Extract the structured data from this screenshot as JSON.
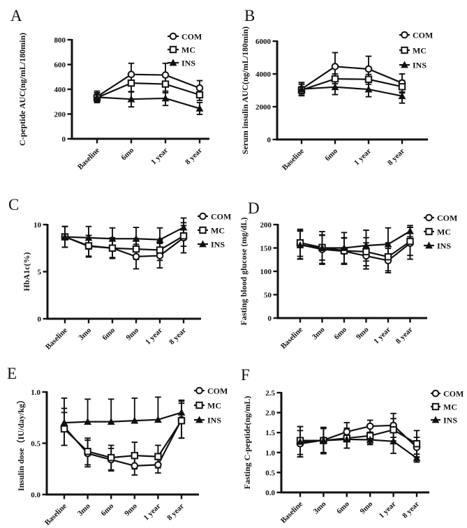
{
  "figure": {
    "background": "#ffffff",
    "ink": "#111111",
    "panel_letters": [
      "A",
      "B",
      "C",
      "D",
      "E",
      "F"
    ]
  },
  "legend": {
    "position": "top-right",
    "entries": [
      {
        "label": "COM",
        "marker": "open-circle"
      },
      {
        "label": "MC",
        "marker": "open-square"
      },
      {
        "label": "INS",
        "marker": "filled-triangle"
      }
    ]
  },
  "chart_data": [
    {
      "panel": "A",
      "type": "line",
      "title": "",
      "xlabel": "",
      "ylabel": "C-peptide AUC(ng/mL/180min)",
      "categories": [
        "Baseline",
        "6mo",
        "1 year",
        "8 year"
      ],
      "ylim": [
        0,
        800
      ],
      "yticks": [
        0,
        200,
        400,
        600,
        800
      ],
      "ytick_labels": [
        "0",
        "200",
        "400",
        "600",
        "800"
      ],
      "grid": false,
      "legend": [
        "COM",
        "MC",
        "INS"
      ],
      "series": [
        {
          "name": "COM",
          "marker": "circle",
          "values": [
            340,
            520,
            515,
            410
          ],
          "errors": [
            45,
            90,
            95,
            60
          ]
        },
        {
          "name": "MC",
          "marker": "square",
          "values": [
            332,
            450,
            442,
            355
          ],
          "errors": [
            40,
            72,
            70,
            45
          ]
        },
        {
          "name": "INS",
          "marker": "triangle",
          "values": [
            336,
            320,
            327,
            245
          ],
          "errors": [
            35,
            62,
            58,
            48
          ]
        }
      ]
    },
    {
      "panel": "B",
      "type": "line",
      "title": "",
      "xlabel": "",
      "ylabel": "Serum insulin AUC(ng/mL/180min)",
      "categories": [
        "Baseline",
        "6mo",
        "1 year",
        "8 year"
      ],
      "ylim": [
        0,
        6000
      ],
      "yticks": [
        0,
        2000,
        4000,
        6000
      ],
      "ytick_labels": [
        "0",
        "2000",
        "4000",
        "6000"
      ],
      "grid": false,
      "legend": [
        "COM",
        "MC",
        "INS"
      ],
      "series": [
        {
          "name": "COM",
          "marker": "circle",
          "values": [
            3080,
            4450,
            4300,
            3450
          ],
          "errors": [
            400,
            850,
            780,
            550
          ]
        },
        {
          "name": "MC",
          "marker": "square",
          "values": [
            3020,
            3700,
            3670,
            3220
          ],
          "errors": [
            350,
            300,
            300,
            380
          ]
        },
        {
          "name": "INS",
          "marker": "triangle",
          "values": [
            3080,
            3200,
            3060,
            2650
          ],
          "errors": [
            300,
            460,
            450,
            430
          ]
        }
      ]
    },
    {
      "panel": "C",
      "type": "line",
      "title": "",
      "xlabel": "",
      "ylabel": "HbA1c(%)",
      "categories": [
        "Baseline",
        "3mo",
        "6mo",
        "9mo",
        "1 year",
        "8 year"
      ],
      "ylim": [
        0,
        10
      ],
      "yticks": [
        0,
        5,
        10
      ],
      "ytick_labels": [
        "0",
        "5",
        "10"
      ],
      "grid": false,
      "legend": [
        "COM",
        "MC",
        "INS"
      ],
      "series": [
        {
          "name": "COM",
          "marker": "circle",
          "values": [
            8.7,
            7.7,
            7.5,
            6.6,
            6.7,
            8.6
          ],
          "errors": [
            1.1,
            1.15,
            1.1,
            1.3,
            1.3,
            1.6
          ]
        },
        {
          "name": "MC",
          "marker": "square",
          "values": [
            8.7,
            7.75,
            7.5,
            7.4,
            7.3,
            8.8
          ],
          "errors": [
            1.1,
            1.1,
            1.0,
            1.1,
            1.1,
            1.1
          ]
        },
        {
          "name": "INS",
          "marker": "triangle",
          "values": [
            8.7,
            8.6,
            8.5,
            8.5,
            8.4,
            9.7
          ],
          "errors": [
            1.1,
            1.2,
            1.15,
            1.2,
            1.25,
            1.0
          ]
        }
      ]
    },
    {
      "panel": "D",
      "type": "line",
      "title": "",
      "xlabel": "",
      "ylabel": "Fasting blood glucose (mg/dL)",
      "categories": [
        "Baseline",
        "3mo",
        "6mo",
        "9mo",
        "1 year",
        "8 year"
      ],
      "ylim": [
        0,
        200
      ],
      "yticks": [
        0,
        50,
        100,
        150,
        200
      ],
      "ytick_labels": [
        "0",
        "50",
        "100",
        "150",
        "200"
      ],
      "grid": false,
      "legend": [
        "COM",
        "MC",
        "INS"
      ],
      "series": [
        {
          "name": "COM",
          "marker": "circle",
          "values": [
            157,
            147,
            143,
            133,
            123,
            160
          ],
          "errors": [
            30,
            30,
            28,
            28,
            26,
            34
          ]
        },
        {
          "name": "MC",
          "marker": "square",
          "values": [
            161,
            151,
            144,
            142,
            131,
            164
          ],
          "errors": [
            29,
            27,
            28,
            30,
            30,
            30
          ]
        },
        {
          "name": "INS",
          "marker": "triangle",
          "values": [
            156,
            150,
            150,
            155,
            158,
            186
          ],
          "errors": [
            30,
            35,
            33,
            33,
            35,
            12
          ]
        }
      ]
    },
    {
      "panel": "E",
      "type": "line",
      "title": "",
      "xlabel": "",
      "ylabel": "Insulin dose（IU/day/kg）",
      "categories": [
        "Baseline",
        "3mo",
        "6mo",
        "9mo",
        "1 year",
        "8 year"
      ],
      "ylim": [
        0,
        1.0
      ],
      "yticks": [
        0,
        0.5,
        1.0
      ],
      "ytick_labels": [
        "0.0",
        "0.5",
        "1.0"
      ],
      "grid": false,
      "legend": [
        "COM",
        "MC",
        "INS"
      ],
      "series": [
        {
          "name": "COM",
          "marker": "circle",
          "values": [
            0.66,
            0.4,
            0.34,
            0.28,
            0.29,
            0.73
          ],
          "errors": [
            0.18,
            0.13,
            0.11,
            0.09,
            0.08,
            0.18
          ]
        },
        {
          "name": "MC",
          "marker": "square",
          "values": [
            0.64,
            0.42,
            0.36,
            0.38,
            0.37,
            0.72
          ],
          "errors": [
            0.16,
            0.13,
            0.12,
            0.13,
            0.11,
            0.17
          ]
        },
        {
          "name": "INS",
          "marker": "triangle",
          "values": [
            0.7,
            0.71,
            0.71,
            0.72,
            0.73,
            0.8
          ],
          "errors": [
            0.24,
            0.22,
            0.22,
            0.22,
            0.22,
            0.12
          ],
          "error_direction": "up"
        }
      ]
    },
    {
      "panel": "F",
      "type": "line",
      "title": "",
      "xlabel": "",
      "ylabel": "Fasting C-peptide(ng/mL)",
      "categories": [
        "Baseline",
        "3mo",
        "6mo",
        "9mo",
        "1 year",
        "8 year"
      ],
      "ylim": [
        0,
        2.5
      ],
      "yticks": [
        0,
        0.5,
        1.0,
        1.5,
        2.0,
        2.5
      ],
      "ytick_labels": [
        "0.0",
        "0.5",
        "1.0",
        "1.5",
        "2.0",
        "2.5"
      ],
      "grid": false,
      "legend": [
        "COM",
        "MC",
        "INS"
      ],
      "series": [
        {
          "name": "COM",
          "marker": "circle",
          "values": [
            1.22,
            1.31,
            1.52,
            1.66,
            1.68,
            1.13
          ],
          "errors": [
            0.33,
            0.32,
            0.23,
            0.15,
            0.3,
            0.25
          ]
        },
        {
          "name": "MC",
          "marker": "square",
          "values": [
            1.3,
            1.3,
            1.36,
            1.42,
            1.57,
            1.22
          ],
          "errors": [
            0.35,
            0.33,
            0.25,
            0.2,
            0.28,
            0.33
          ]
        },
        {
          "name": "INS",
          "marker": "triangle",
          "values": [
            1.27,
            1.3,
            1.33,
            1.32,
            1.28,
            0.86
          ],
          "errors": [
            0.38,
            0.3,
            0.22,
            0.12,
            0.3,
            0.1
          ]
        }
      ]
    }
  ]
}
